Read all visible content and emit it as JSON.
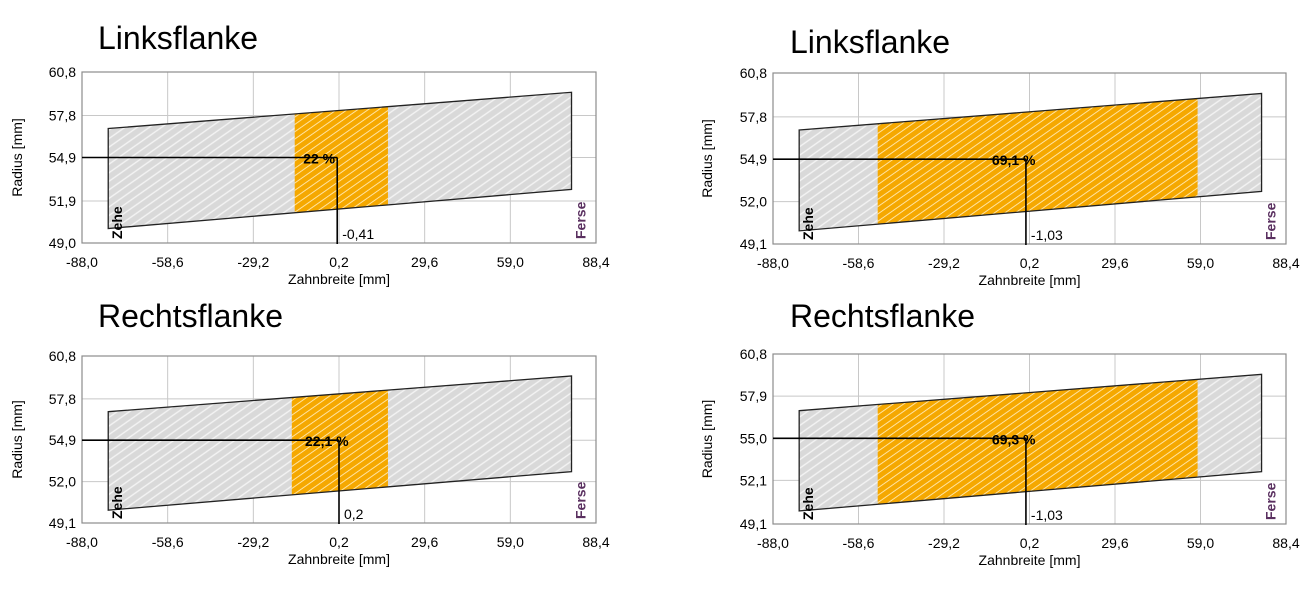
{
  "chart_data": [
    {
      "type": "contact-pattern",
      "title": "Linksflanke",
      "xlabel": "Zahnbreite [mm]",
      "ylabel": "Radius [mm]",
      "xticks": [
        "-88,0",
        "-58,6",
        "-29,2",
        "0,2",
        "29,6",
        "59,0",
        "88,4"
      ],
      "yticks": [
        "60,8",
        "57,8",
        "54,9",
        "51,9",
        "49,0"
      ],
      "xlim": [
        -88.0,
        88.4
      ],
      "ylim": [
        49.0,
        60.8
      ],
      "tooth_outline": {
        "x": [
          -79,
          80
        ],
        "top": [
          56.9,
          59.4
        ],
        "bottom": [
          50.0,
          52.7
        ]
      },
      "contact_zone_x": [
        -15,
        17
      ],
      "contact_percent": "22 %",
      "center_x_label": "-0,41",
      "center_x": -0.41,
      "center_y": 54.9,
      "toe_label": "Zehe",
      "heel_label": "Ferse",
      "grid": true
    },
    {
      "type": "contact-pattern",
      "title": "Linksflanke",
      "xlabel": "Zahnbreite [mm]",
      "ylabel": "Radius [mm]",
      "xticks": [
        "-88,0",
        "-58,6",
        "-29,2",
        "0,2",
        "29,6",
        "59,0",
        "88,4"
      ],
      "yticks": [
        "60,8",
        "57,8",
        "54,9",
        "52,0",
        "49,1"
      ],
      "xlim": [
        -88.0,
        88.4
      ],
      "ylim": [
        49.1,
        60.8
      ],
      "tooth_outline": {
        "x": [
          -79,
          80
        ],
        "top": [
          56.9,
          59.4
        ],
        "bottom": [
          50.0,
          52.7
        ]
      },
      "contact_zone_x": [
        -52,
        58
      ],
      "contact_percent": "69,1 %",
      "center_x_label": "-1,03",
      "center_x": -1.03,
      "center_y": 54.9,
      "toe_label": "Zehe",
      "heel_label": "Ferse",
      "grid": true
    },
    {
      "type": "contact-pattern",
      "title": "Rechtsflanke",
      "xlabel": "Zahnbreite [mm]",
      "ylabel": "Radius [mm]",
      "xticks": [
        "-88,0",
        "-58,6",
        "-29,2",
        "0,2",
        "29,6",
        "59,0",
        "88,4"
      ],
      "yticks": [
        "60,8",
        "57,8",
        "54,9",
        "52,0",
        "49,1"
      ],
      "xlim": [
        -88.0,
        88.4
      ],
      "ylim": [
        49.1,
        60.8
      ],
      "tooth_outline": {
        "x": [
          -79,
          80
        ],
        "top": [
          56.9,
          59.4
        ],
        "bottom": [
          50.0,
          52.7
        ]
      },
      "contact_zone_x": [
        -16,
        17
      ],
      "contact_percent": "22,1 %",
      "center_x_label": "0,2",
      "center_x": 0.2,
      "center_y": 54.9,
      "toe_label": "Zehe",
      "heel_label": "Ferse",
      "grid": true
    },
    {
      "type": "contact-pattern",
      "title": "Rechtsflanke",
      "xlabel": "Zahnbreite [mm]",
      "ylabel": "Radius [mm]",
      "xticks": [
        "-88,0",
        "-58,6",
        "-29,2",
        "0,2",
        "29,6",
        "59,0",
        "88,4"
      ],
      "yticks": [
        "60,8",
        "57,9",
        "55,0",
        "52,1",
        "49,1"
      ],
      "xlim": [
        -88.0,
        88.4
      ],
      "ylim": [
        49.1,
        60.8
      ],
      "tooth_outline": {
        "x": [
          -79,
          80
        ],
        "top": [
          56.9,
          59.4
        ],
        "bottom": [
          50.0,
          52.7
        ]
      },
      "contact_zone_x": [
        -52,
        58
      ],
      "contact_percent": "69,3 %",
      "center_x_label": "-1,03",
      "center_x": -1.03,
      "center_y": 55.0,
      "toe_label": "Zehe",
      "heel_label": "Ferse",
      "grid": true
    }
  ],
  "colors": {
    "contact": "#f5a800",
    "contact_hatch": "#ffe3a0",
    "tooth_fill": "#d9d9d9",
    "tooth_hatch": "#f4f4f4",
    "grid": "#c8c8c8",
    "plot_border": "#8c8c8c",
    "ink": "#000000"
  }
}
